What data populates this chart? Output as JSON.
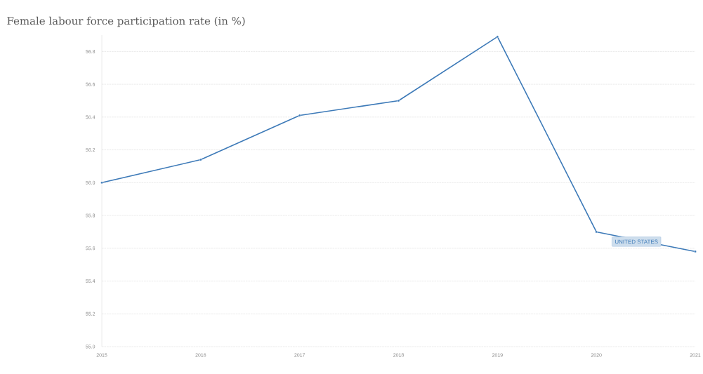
{
  "chart_data": {
    "type": "line",
    "title": "Female labour force participation rate (in %)",
    "x": [
      2015,
      2016,
      2017,
      2018,
      2019,
      2020,
      2021
    ],
    "series": [
      {
        "name": "UNITED STATES",
        "color": "#3d7ab8",
        "values": [
          56.0,
          56.14,
          56.41,
          56.5,
          56.89,
          55.7,
          55.58
        ]
      }
    ],
    "xlim": [
      2015,
      2021
    ],
    "xticks": [
      2015,
      2016,
      2017,
      2018,
      2019,
      2020,
      2021
    ],
    "ylim": [
      55.0,
      56.9
    ],
    "yticks": [
      {
        "value": 55.0,
        "label": "55.0"
      },
      {
        "value": 55.2,
        "label": "55.2"
      },
      {
        "value": 55.4,
        "label": "55.4"
      },
      {
        "value": 55.6,
        "label": "55.6"
      },
      {
        "value": 55.8,
        "label": "55.8"
      },
      {
        "value": 56.0,
        "label": "56.0"
      },
      {
        "value": 56.2,
        "label": "56.2"
      },
      {
        "value": 56.4,
        "label": "56.4"
      },
      {
        "value": 56.6,
        "label": "56.6"
      },
      {
        "value": 56.8,
        "label": "56.8"
      }
    ],
    "grid": "y",
    "marker": "circle",
    "line_style": "solid"
  }
}
